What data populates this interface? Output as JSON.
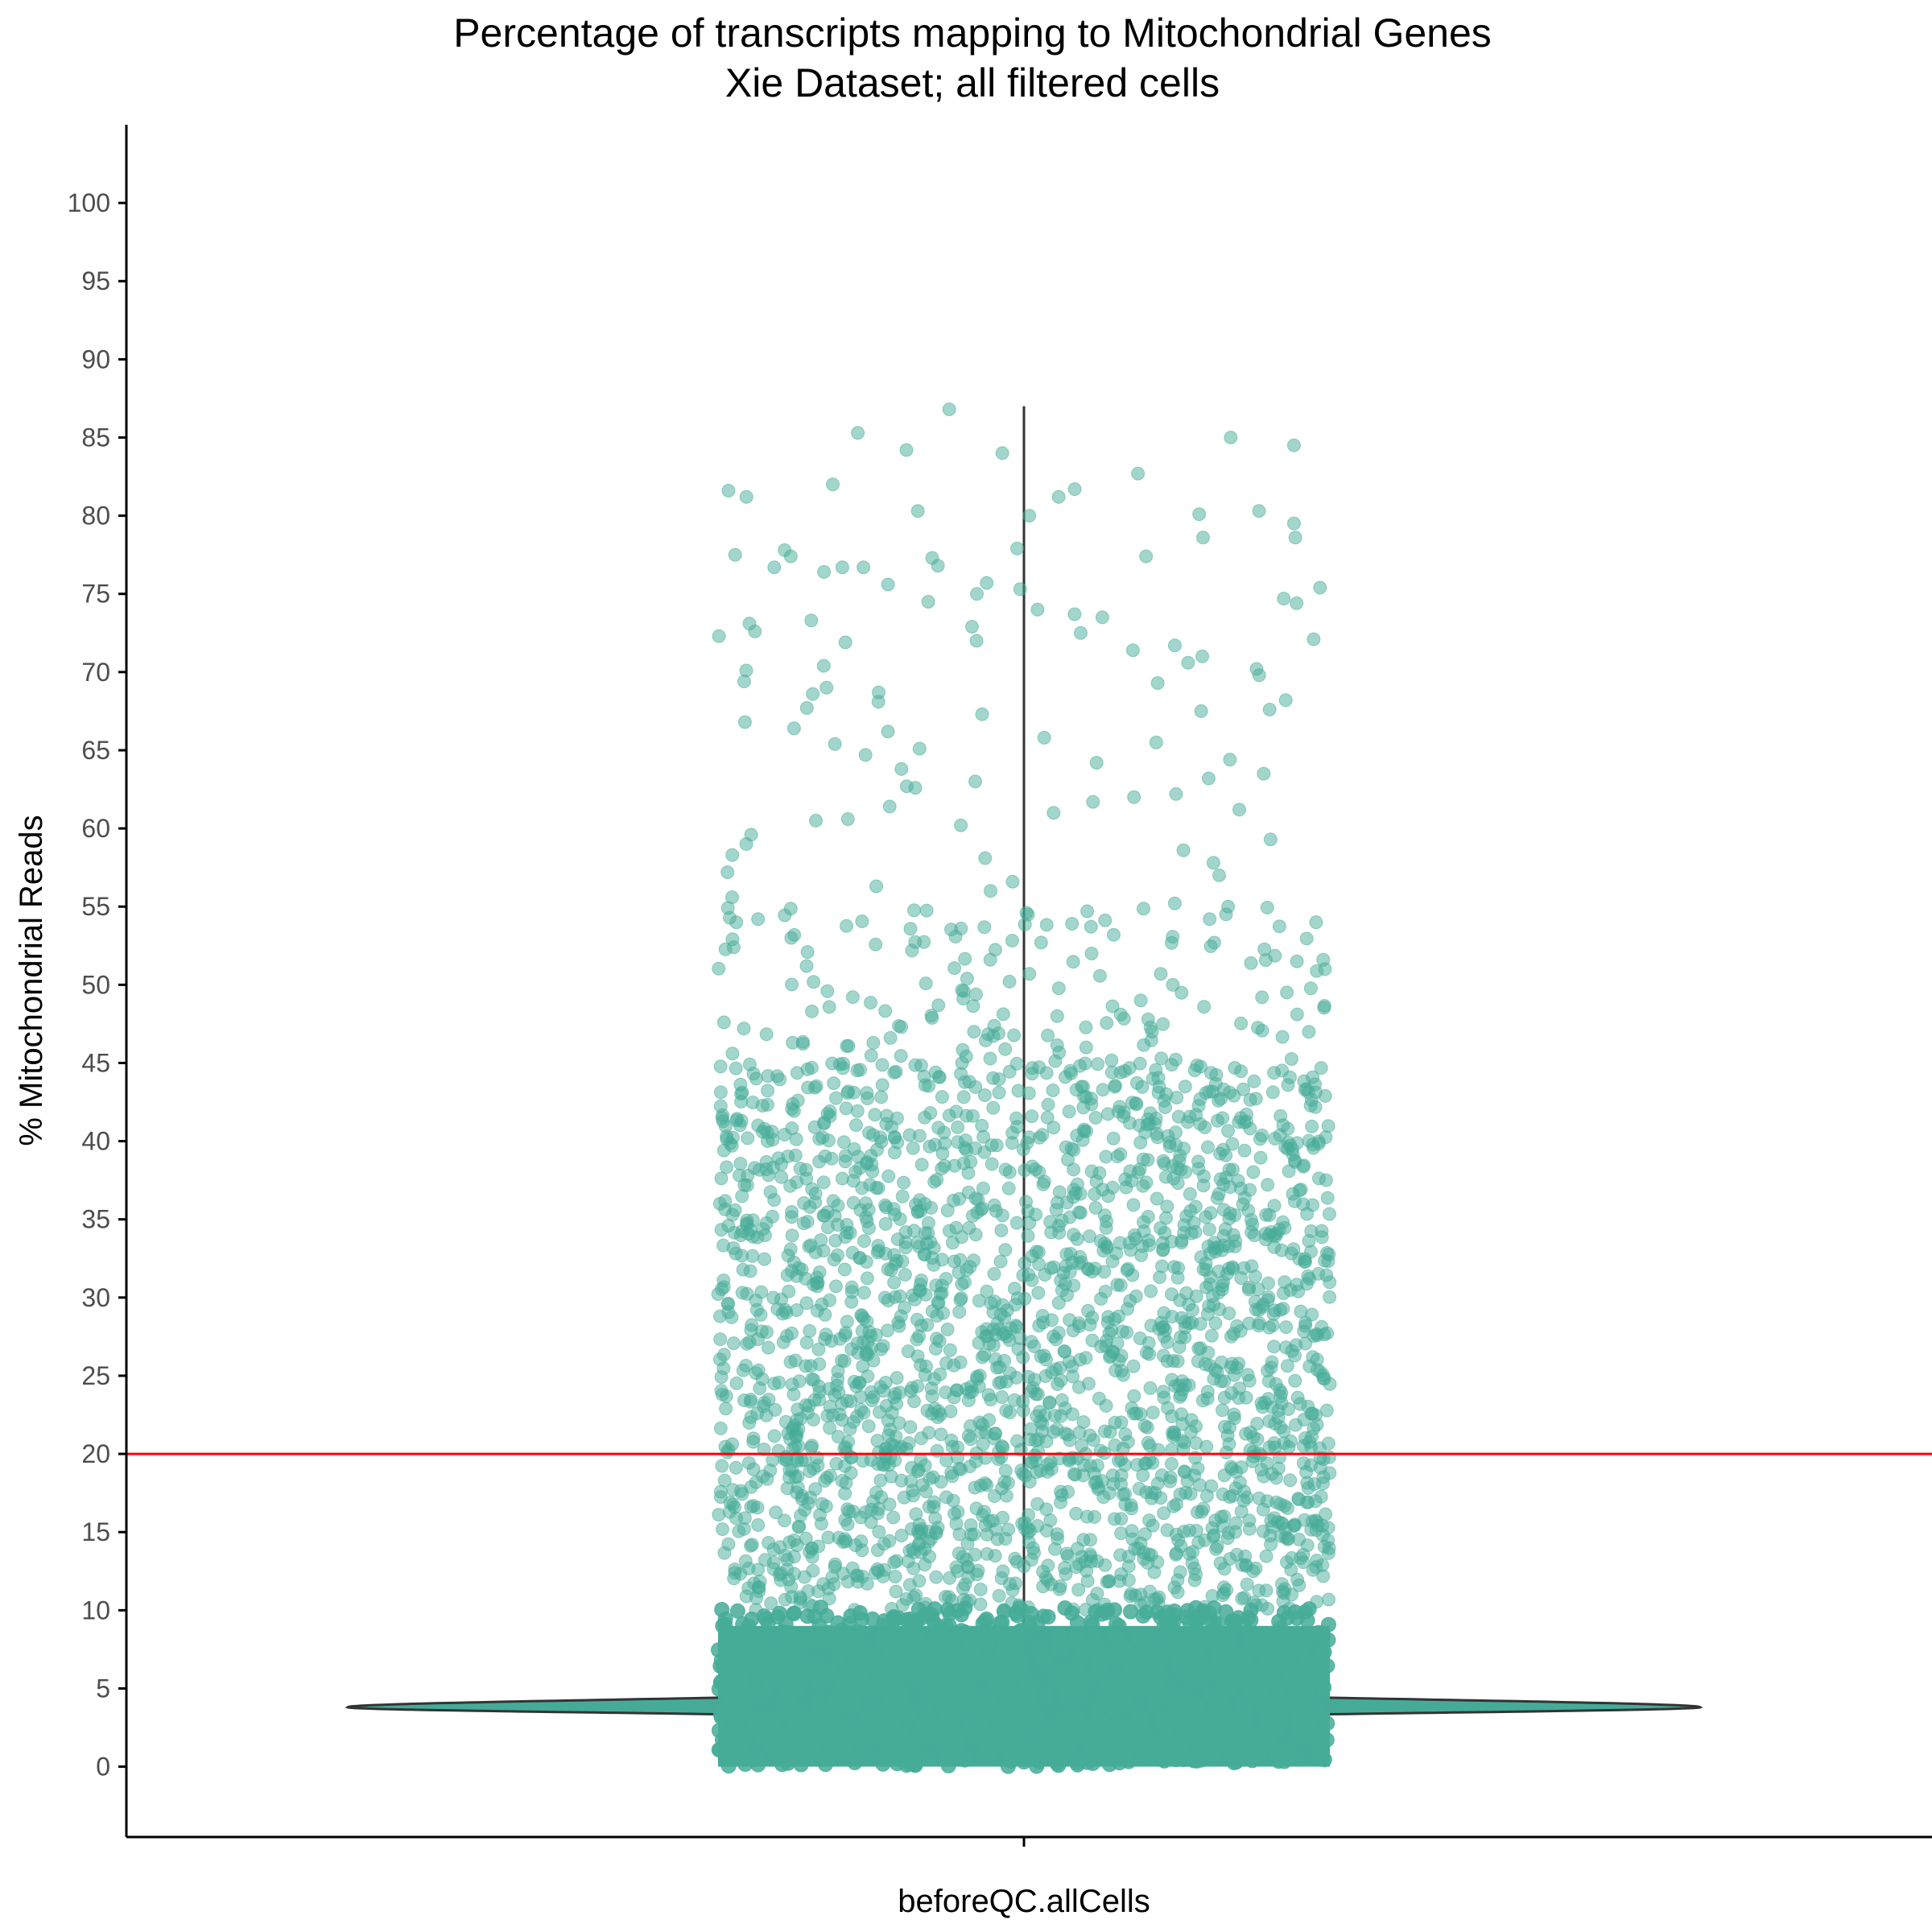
{
  "chart_data": {
    "type": "violin",
    "title": "Percentage of transcripts mapping to Mitochondrial Genes",
    "subtitle": "Xie Dataset; all filtered cells",
    "xlabel": "",
    "ylabel": "% Mitochondrial Reads",
    "categories": [
      "beforeQC.allCells"
    ],
    "ylim": [
      -4.5,
      105
    ],
    "yticks": [
      0,
      5,
      10,
      15,
      20,
      25,
      30,
      35,
      40,
      45,
      50,
      55,
      60,
      65,
      70,
      75,
      80,
      85,
      90,
      95,
      100
    ],
    "threshold_line": {
      "y": 20,
      "color": "#ff0000"
    },
    "violin": {
      "color": "#45ab98",
      "mode_y": 3.8,
      "range": [
        0,
        87
      ],
      "profile": [
        [
          0.0,
          0.0
        ],
        [
          0.5,
          0.2
        ],
        [
          1.0,
          0.4
        ],
        [
          1.5,
          0.6
        ],
        [
          2.0,
          0.8
        ],
        [
          2.5,
          0.88
        ],
        [
          3.0,
          0.93
        ],
        [
          3.5,
          0.98
        ],
        [
          3.8,
          1.0
        ],
        [
          4.2,
          0.97
        ],
        [
          4.6,
          0.9
        ],
        [
          5.0,
          0.8
        ],
        [
          5.5,
          0.72
        ],
        [
          6.0,
          0.63
        ],
        [
          6.5,
          0.55
        ],
        [
          7.0,
          0.48
        ],
        [
          8.0,
          0.4
        ],
        [
          9.0,
          0.35
        ],
        [
          10.0,
          0.05
        ],
        [
          87.0,
          0.0
        ]
      ]
    },
    "points": {
      "color": "#45ab98",
      "description_counts": {
        "dense_band": [
          0,
          10
        ],
        "jitter_halfwidth": 0.34
      },
      "outlier_values": [
        86.8,
        85.3,
        85.0,
        84.5,
        84.2,
        84.0,
        82.7,
        82.0,
        81.7,
        81.6,
        81.2,
        81.2,
        80.3,
        80.3,
        80.1,
        80.0,
        79.5,
        78.6,
        78.6,
        77.9,
        77.8,
        77.5,
        77.4,
        77.4,
        77.3,
        76.8,
        76.7,
        76.7,
        76.7,
        76.4,
        75.7,
        75.6,
        75.4,
        75.3,
        75.0,
        74.7,
        74.5,
        74.4,
        74.0,
        73.7,
        73.5,
        73.3,
        73.1,
        72.9,
        72.6,
        72.5,
        72.3,
        72.1,
        72.0,
        71.9,
        71.7,
        71.4,
        71.0,
        70.6,
        70.4,
        70.2,
        70.1,
        69.8,
        69.4,
        69.3,
        69.0,
        68.7,
        68.6,
        68.2,
        68.1,
        67.7,
        67.6,
        67.5,
        67.3,
        66.8,
        66.4,
        66.2,
        65.8,
        65.5,
        65.4,
        65.1,
        64.7,
        64.4,
        64.2,
        63.8,
        63.5,
        63.2,
        63.0,
        62.7,
        62.6,
        62.2,
        62.0,
        61.7,
        61.4,
        61.2,
        61.0,
        60.6,
        60.5,
        60.2,
        59.6,
        59.3,
        59.0,
        58.6,
        58.3,
        58.1,
        57.8,
        57.2,
        57.0,
        56.6,
        56.3,
        56.0,
        55.6,
        55.2,
        55.0,
        54.6,
        54.2,
        54.0,
        53.6,
        53.2,
        53.0,
        52.7,
        52.4,
        52.0,
        51.6,
        51.2,
        51.0,
        50.7,
        50.4,
        50.0,
        49.6,
        49.2,
        49.0,
        48.6,
        48.3,
        48.0,
        47.6,
        47.3,
        47.0,
        46.6,
        46.3,
        46.0,
        45.6,
        45.3,
        45.0
      ],
      "mid_range": [
        10,
        45
      ]
    }
  }
}
